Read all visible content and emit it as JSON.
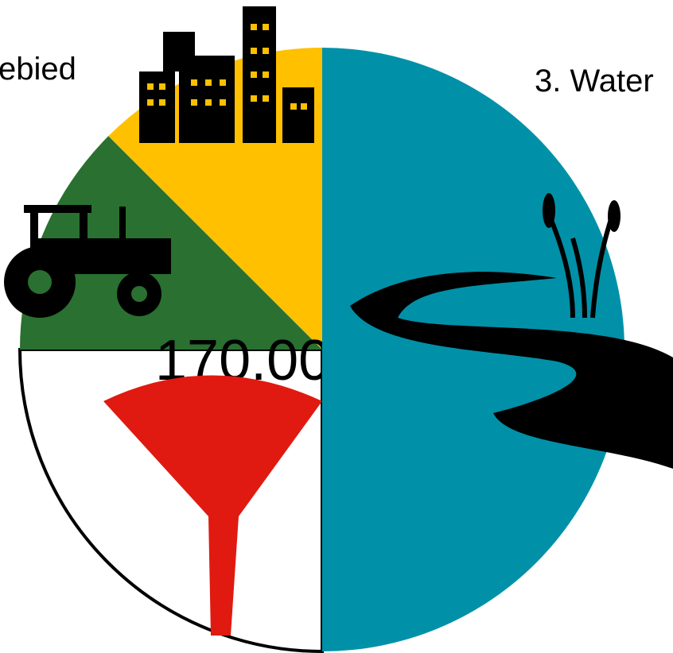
{
  "chart_data": {
    "type": "pie",
    "categories": [
      "3. Water",
      null,
      null,
      null
    ],
    "values": [
      50,
      25,
      12.5,
      12.5
    ],
    "colors": [
      "#0091a8",
      "#ffffff",
      "#2a7030",
      "#ffc000"
    ],
    "annotations": [
      "ebied",
      "170.00"
    ]
  }
}
